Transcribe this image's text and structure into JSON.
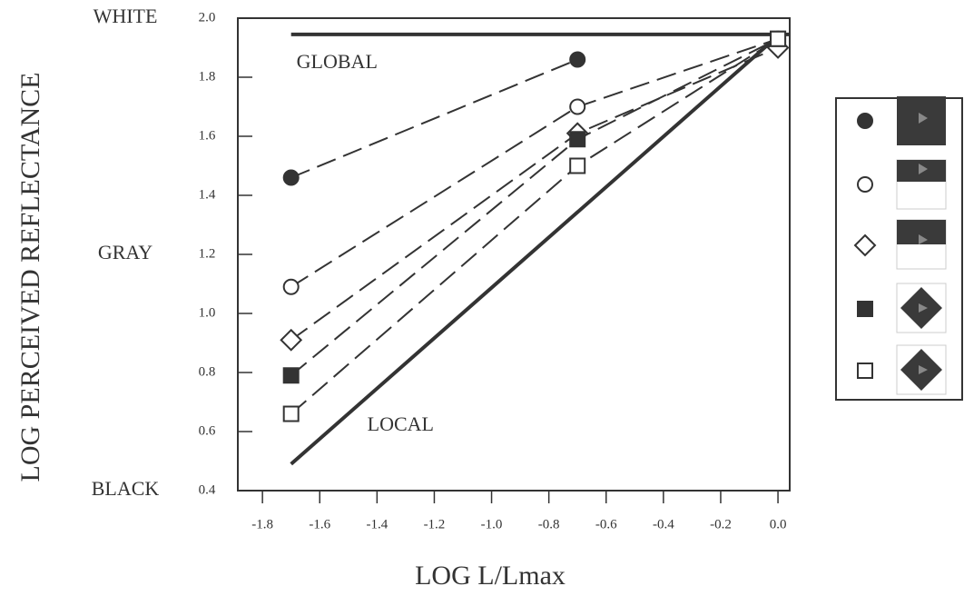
{
  "chart_data": {
    "type": "line",
    "x_label": "LOG L/Lmax",
    "y_label": "LOG PERCEIVED REFLECTANCE",
    "x": [
      -1.7,
      -0.7,
      0
    ],
    "series": [
      {
        "marker": "circle-filled",
        "color": "#333333",
        "values": [
          1.46,
          1.86,
          null
        ]
      },
      {
        "marker": "circle-open",
        "color": "#333333",
        "values": [
          1.09,
          1.7,
          1.93
        ]
      },
      {
        "marker": "diamond-open",
        "color": "#333333",
        "values": [
          0.91,
          1.61,
          1.9
        ]
      },
      {
        "marker": "square-filled",
        "color": "#333333",
        "values": [
          0.79,
          1.59,
          1.93
        ]
      },
      {
        "marker": "square-open",
        "color": "#333333",
        "values": [
          0.66,
          1.5,
          1.93
        ]
      }
    ],
    "reference_lines": [
      {
        "name": "GLOBAL",
        "color": "#333333",
        "x": [
          -1.7,
          0.04
        ],
        "values": [
          1.945,
          1.945
        ]
      },
      {
        "name": "LOCAL",
        "color": "#333333",
        "x": [
          -1.7,
          0
        ],
        "values": [
          0.49,
          1.94
        ]
      }
    ],
    "xlim": [
      -1.886,
      0.041
    ],
    "ylim": [
      0.4,
      2.0
    ],
    "xticks": [
      -1.8,
      -1.6,
      -1.4,
      -1.2,
      {
        "value": -1.0,
        "label": "-1.0"
      },
      -0.8,
      -0.6,
      -0.4,
      -0.2,
      {
        "value": 0.0,
        "label": "0.0"
      }
    ],
    "yticks": [
      0.4,
      0.6,
      0.8,
      {
        "value": 1.0,
        "label": "1.0"
      },
      1.2,
      1.4,
      1.6,
      1.8,
      {
        "value": 2.0,
        "label": "2.0"
      }
    ],
    "y_scale_labels": [
      {
        "value": 2.0,
        "label": "WHITE"
      },
      {
        "value": 1.2,
        "label": "GRAY"
      },
      {
        "value": 0.4,
        "label": "BLACK"
      }
    ]
  }
}
